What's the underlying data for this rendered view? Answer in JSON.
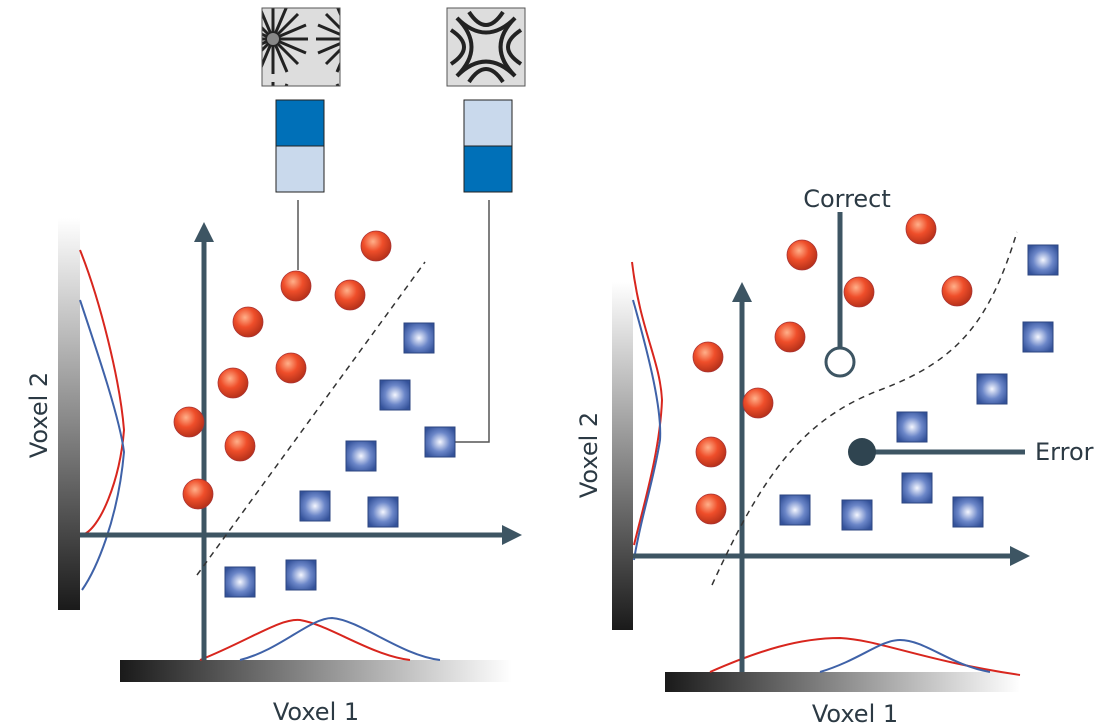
{
  "left_panel": {
    "y_axis_label": "Voxel 2",
    "x_axis_label": "Voxel 1"
  },
  "right_panel": {
    "y_axis_label": "Voxel 2",
    "x_axis_label": "Voxel 1",
    "correct_label": "Correct",
    "error_label": "Error"
  }
}
